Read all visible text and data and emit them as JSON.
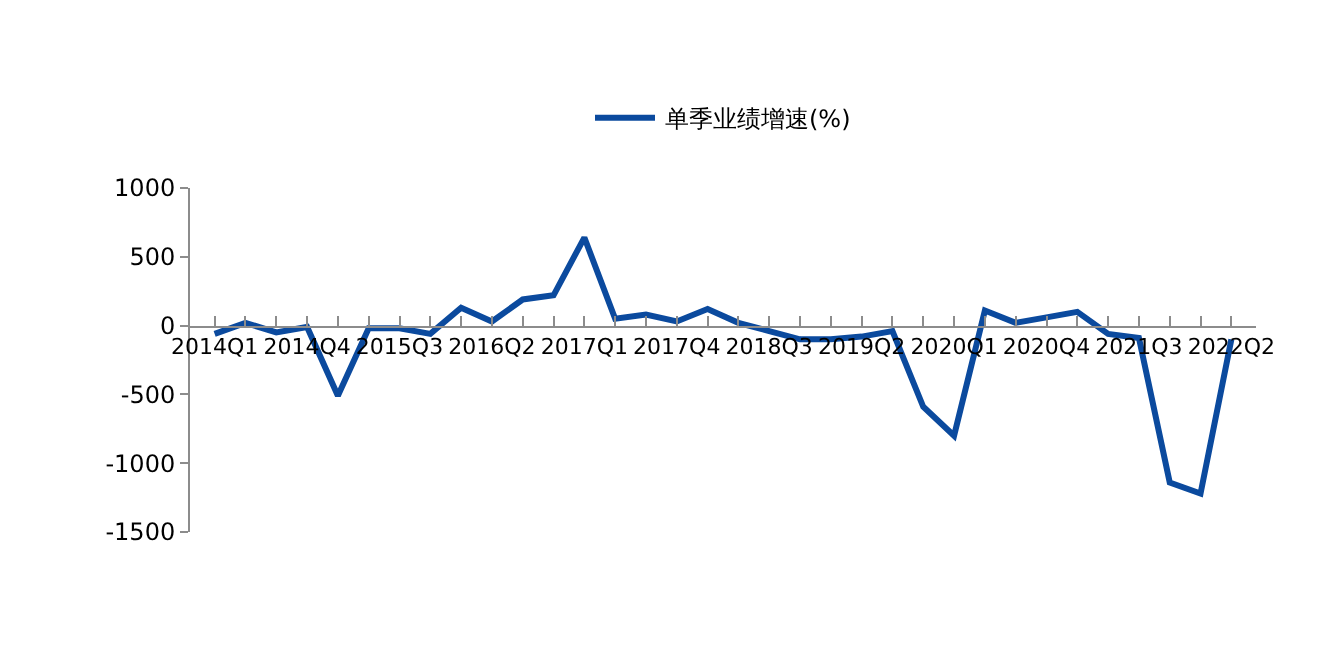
{
  "chart_data": {
    "type": "line",
    "categories": [
      "2014Q1",
      null,
      null,
      "2014Q4",
      null,
      null,
      "2015Q3",
      null,
      null,
      "2016Q2",
      null,
      null,
      "2017Q1",
      null,
      null,
      "2017Q4",
      null,
      null,
      "2018Q3",
      null,
      null,
      "2019Q2",
      null,
      null,
      "2020Q1",
      null,
      null,
      "2020Q4",
      null,
      null,
      "2021Q3",
      null,
      null,
      "2022Q2"
    ],
    "series": [
      {
        "name": "单季业绩增速(%)",
        "color": "#0b4a9e",
        "values": [
          -60,
          20,
          -50,
          -10,
          -510,
          -20,
          -20,
          -60,
          130,
          30,
          190,
          220,
          640,
          50,
          80,
          30,
          120,
          20,
          -40,
          -100,
          -100,
          -80,
          -40,
          -590,
          -800,
          110,
          20,
          60,
          100,
          -60,
          -90,
          -1140,
          -1220,
          -100
        ]
      }
    ],
    "ylim": [
      -1500,
      1000
    ],
    "yticks": [
      -1500,
      -1000,
      -500,
      0,
      500,
      1000
    ],
    "legend": "top",
    "marker": "none",
    "line_style": "solid"
  }
}
